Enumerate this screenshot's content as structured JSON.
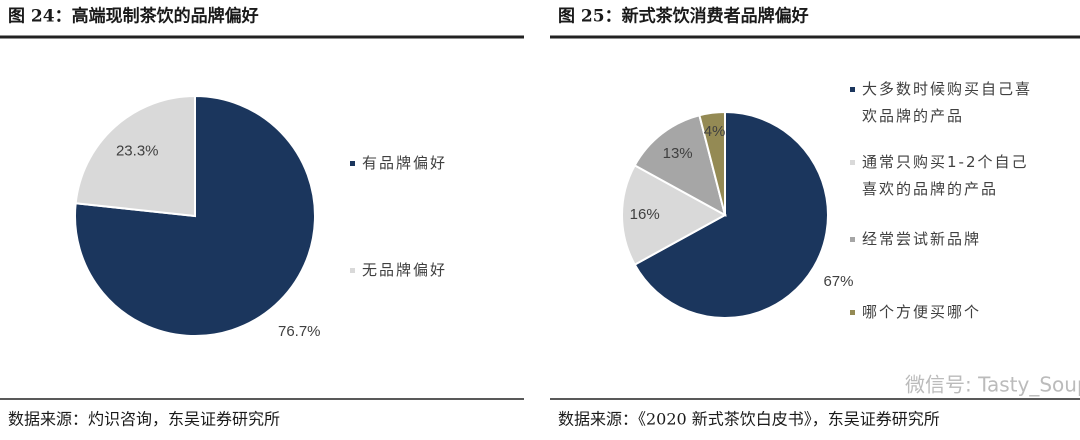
{
  "chart_data": [
    {
      "type": "pie",
      "title": "图 24：高端现制茶饮的品牌偏好",
      "categories": [
        "有品牌偏好",
        "无品牌偏好"
      ],
      "values": [
        76.7,
        23.3
      ],
      "value_labels": [
        "76.7%",
        "23.3%"
      ],
      "colors": [
        "#1b365d",
        "#d9d9d9"
      ],
      "source": "数据来源：灼识咨询，东吴证券研究所"
    },
    {
      "type": "pie",
      "title": "图 25：新式茶饮消费者品牌偏好",
      "categories": [
        "大多数时候购买自己喜欢品牌的产品",
        "通常只购买1-2个自己喜欢的品牌的产品",
        "经常尝试新品牌",
        "哪个方便买哪个"
      ],
      "values": [
        67,
        16,
        13,
        4
      ],
      "value_labels": [
        "67%",
        "16%",
        "13%",
        "4%"
      ],
      "colors": [
        "#1b365d",
        "#d9d9d9",
        "#a6a6a6",
        "#948a54"
      ],
      "source": "数据来源：《2020 新式茶饮白皮书》，东吴证券研究所"
    }
  ],
  "watermark": "微信号: Tasty_Soup"
}
